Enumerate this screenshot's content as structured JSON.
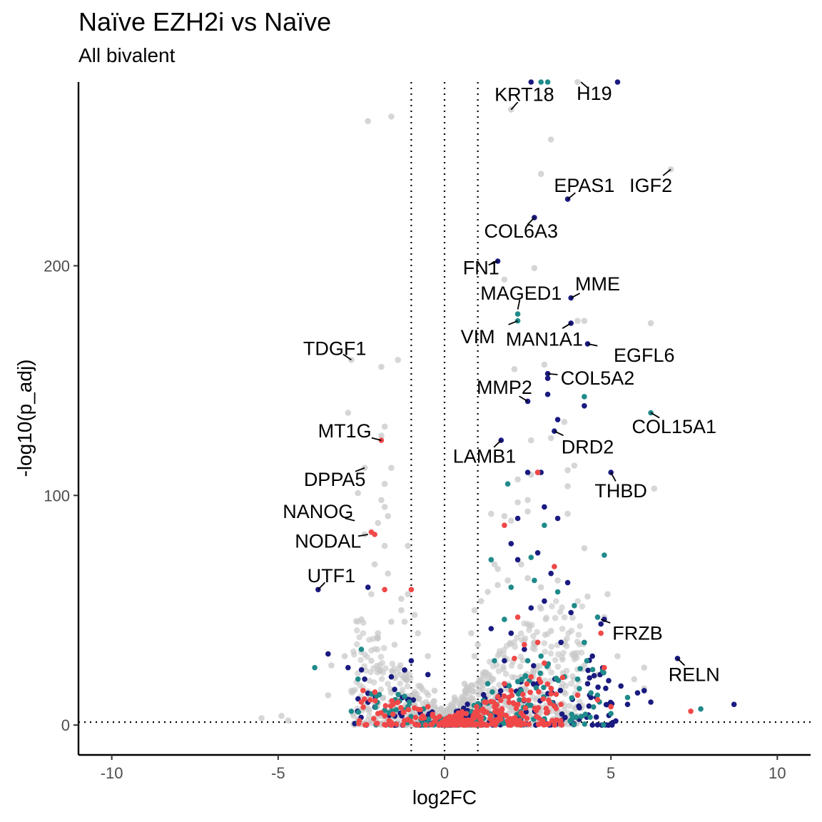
{
  "chart_data": {
    "type": "scatter",
    "title": "Naïve EZH2i vs Naïve",
    "subtitle": "All bivalent",
    "xlabel": "log2FC",
    "ylabel": "-log10(p_adj)",
    "xlim": [
      -11,
      11
    ],
    "ylim": [
      -13,
      280
    ],
    "x_ticks": [
      -10,
      -5,
      0,
      5,
      10
    ],
    "y_ticks": [
      0,
      100,
      200
    ],
    "x_tick_labels": [
      "-10",
      "-5",
      "0",
      "5",
      "10"
    ],
    "y_tick_labels": [
      "0",
      "100",
      "200"
    ],
    "grid": false,
    "legend": "none",
    "reference_lines": {
      "vertical": [
        -1,
        0,
        1
      ],
      "horizontal": [
        1.3
      ],
      "style": "dotted"
    },
    "colors": {
      "background_genes": "#c8c8c8",
      "navy": "#1a1a80",
      "teal": "#1f8a8a",
      "red": "#f04848"
    },
    "labeled_genes": [
      {
        "gene": "KRT18",
        "x": 2.0,
        "y": 268,
        "label_x": 2.4,
        "label_y": 274.5
      },
      {
        "gene": "H19",
        "x": 4.1,
        "y": 280,
        "label_x": 4.5,
        "label_y": 275
      },
      {
        "gene": "EPAS1",
        "x": 3.7,
        "y": 229,
        "label_x": 4.2,
        "label_y": 235
      },
      {
        "gene": "IGF2",
        "x": 6.8,
        "y": 242,
        "label_x": 6.2,
        "label_y": 235
      },
      {
        "gene": "COL6A3",
        "x": 2.7,
        "y": 221,
        "label_x": 2.3,
        "label_y": 215
      },
      {
        "gene": "FN1",
        "x": 1.6,
        "y": 202,
        "label_x": 1.1,
        "label_y": 199
      },
      {
        "gene": "MME",
        "x": 3.8,
        "y": 186,
        "label_x": 4.6,
        "label_y": 192
      },
      {
        "gene": "MAGED1",
        "x": 2.2,
        "y": 181,
        "label_x": 2.3,
        "label_y": 188
      },
      {
        "gene": "VIM",
        "x": 2.2,
        "y": 176,
        "label_x": 1.0,
        "label_y": 169
      },
      {
        "gene": "MAN1A1",
        "x": 3.8,
        "y": 175,
        "label_x": 3.0,
        "label_y": 168
      },
      {
        "gene": "EGFL6",
        "x": 4.3,
        "y": 166,
        "label_x": 6.0,
        "label_y": 161
      },
      {
        "gene": "TDGF1",
        "x": -2.8,
        "y": 159,
        "label_x": -3.3,
        "label_y": 164
      },
      {
        "gene": "COL5A2",
        "x": 3.1,
        "y": 153,
        "label_x": 4.6,
        "label_y": 151
      },
      {
        "gene": "MMP2",
        "x": 2.5,
        "y": 141,
        "label_x": 1.8,
        "label_y": 147
      },
      {
        "gene": "COL15A1",
        "x": 6.2,
        "y": 136,
        "label_x": 6.9,
        "label_y": 130
      },
      {
        "gene": "MT1G",
        "x": -1.9,
        "y": 124,
        "label_x": -3.0,
        "label_y": 128
      },
      {
        "gene": "DRD2",
        "x": 3.3,
        "y": 128,
        "label_x": 4.3,
        "label_y": 121
      },
      {
        "gene": "LAMB1",
        "x": 1.7,
        "y": 124,
        "label_x": 1.2,
        "label_y": 117
      },
      {
        "gene": "DPPA5",
        "x": -2.4,
        "y": 112,
        "label_x": -3.3,
        "label_y": 107
      },
      {
        "gene": "THBD",
        "x": 5.0,
        "y": 110,
        "label_x": 5.3,
        "label_y": 102
      },
      {
        "gene": "NANOG",
        "x": -2.7,
        "y": 89,
        "label_x": -3.8,
        "label_y": 93
      },
      {
        "gene": "NODAL",
        "x": -2.3,
        "y": 83,
        "label_x": -3.5,
        "label_y": 80
      },
      {
        "gene": "UTF1",
        "x": -3.8,
        "y": 59,
        "label_x": -3.4,
        "label_y": 65
      },
      {
        "gene": "FRZB",
        "x": 4.7,
        "y": 46,
        "label_x": 5.8,
        "label_y": 40
      },
      {
        "gene": "RELN",
        "x": 7.0,
        "y": 29,
        "label_x": 7.5,
        "label_y": 22
      }
    ],
    "highlighted_points": {
      "navy": [
        [
          2.6,
          280
        ],
        [
          5.2,
          280
        ],
        [
          3.7,
          229
        ],
        [
          2.7,
          221
        ],
        [
          1.6,
          202
        ],
        [
          3.8,
          186
        ],
        [
          3.8,
          175
        ],
        [
          4.3,
          166
        ],
        [
          -3.8,
          59
        ],
        [
          3.1,
          153
        ],
        [
          2.5,
          141
        ],
        [
          3.3,
          128
        ],
        [
          1.7,
          124
        ],
        [
          5.0,
          110
        ],
        [
          3.1,
          151
        ],
        [
          3.1,
          144
        ],
        [
          4.2,
          139
        ],
        [
          3.4,
          133
        ],
        [
          2.5,
          110
        ],
        [
          2.8,
          110
        ],
        [
          2.9,
          110
        ],
        [
          3.0,
          95
        ],
        [
          3.4,
          90
        ],
        [
          2.2,
          90
        ],
        [
          4.8,
          46
        ],
        [
          4.7,
          44
        ],
        [
          7.0,
          29
        ],
        [
          8.7,
          9
        ],
        [
          -3.5,
          31
        ],
        [
          -2.9,
          25
        ],
        [
          -2.3,
          60
        ],
        [
          -2.4,
          20
        ],
        [
          -1.6,
          21
        ],
        [
          -1.2,
          24
        ],
        [
          -1.0,
          28
        ],
        [
          -0.5,
          22
        ],
        [
          1.4,
          42
        ],
        [
          1.8,
          28
        ],
        [
          2.0,
          40
        ],
        [
          2.4,
          33
        ],
        [
          2.6,
          51
        ],
        [
          3.0,
          54
        ],
        [
          3.5,
          36
        ],
        [
          3.7,
          62
        ],
        [
          3.8,
          49
        ],
        [
          4.3,
          18
        ],
        [
          4.4,
          12
        ],
        [
          5.3,
          17
        ],
        [
          5.5,
          9
        ],
        [
          5.8,
          14
        ],
        [
          6.0,
          15
        ],
        [
          6.2,
          10
        ],
        [
          2.0,
          79
        ],
        [
          2.2,
          72
        ],
        [
          2.8,
          75
        ],
        [
          3.2,
          66
        ],
        [
          1.6,
          12
        ]
      ],
      "teal": [
        [
          2.9,
          280
        ],
        [
          3.1,
          280
        ],
        [
          2.2,
          179
        ],
        [
          2.2,
          176
        ],
        [
          4.2,
          143
        ],
        [
          6.2,
          136
        ],
        [
          4.6,
          47
        ],
        [
          1.9,
          105
        ],
        [
          3.0,
          87
        ],
        [
          4.8,
          74
        ],
        [
          -3.9,
          25
        ],
        [
          -2.5,
          33
        ],
        [
          -2.6,
          20
        ],
        [
          1.4,
          72
        ],
        [
          1.8,
          46
        ],
        [
          2.0,
          60
        ],
        [
          2.5,
          28
        ],
        [
          2.7,
          63
        ],
        [
          3.4,
          58
        ],
        [
          3.9,
          52
        ],
        [
          4.2,
          36
        ],
        [
          4.4,
          14
        ],
        [
          5.5,
          12
        ],
        [
          7.7,
          7
        ],
        [
          2.6,
          73
        ],
        [
          1.3,
          18
        ],
        [
          2.3,
          15
        ],
        [
          3.6,
          21
        ],
        [
          1.5,
          28
        ],
        [
          2.9,
          30
        ],
        [
          4.0,
          20
        ],
        [
          -1.1,
          8
        ],
        [
          -2.8,
          6
        ],
        [
          5.0,
          5
        ]
      ],
      "red": [
        [
          -1.9,
          124
        ],
        [
          -2.2,
          84
        ],
        [
          -2.1,
          83
        ],
        [
          2.8,
          110
        ],
        [
          4.7,
          40
        ],
        [
          1.8,
          87
        ],
        [
          3.3,
          69
        ],
        [
          -1.8,
          59
        ],
        [
          -1.0,
          59
        ],
        [
          4.8,
          25
        ],
        [
          7.4,
          6
        ],
        [
          -2.5,
          10
        ],
        [
          -1.4,
          10
        ],
        [
          -0.5,
          8
        ],
        [
          0.5,
          4
        ],
        [
          1.0,
          6
        ],
        [
          1.5,
          8
        ],
        [
          2.0,
          15
        ],
        [
          2.2,
          47
        ],
        [
          2.4,
          35
        ],
        [
          2.6,
          21
        ],
        [
          3.0,
          27
        ],
        [
          3.2,
          16
        ],
        [
          3.5,
          9
        ],
        [
          4.0,
          13
        ],
        [
          4.6,
          11
        ],
        [
          5.0,
          8
        ],
        [
          2.1,
          29
        ],
        [
          2.8,
          36
        ],
        [
          1.2,
          10
        ],
        [
          -2.0,
          5
        ],
        [
          -0.7,
          3
        ],
        [
          0.7,
          2
        ],
        [
          1.8,
          18
        ]
      ]
    },
    "background_points": [
      [
        -2.3,
        263
      ],
      [
        -1.6,
        265
      ],
      [
        3.2,
        255
      ],
      [
        2.9,
        240
      ],
      [
        6.8,
        242
      ],
      [
        2.0,
        268
      ],
      [
        4.0,
        280
      ],
      [
        2.7,
        199
      ],
      [
        1.8,
        194
      ],
      [
        4.0,
        176
      ],
      [
        4.2,
        176
      ],
      [
        6.2,
        175
      ],
      [
        -1.4,
        159
      ],
      [
        -1.9,
        156
      ],
      [
        -2.8,
        159
      ],
      [
        2.1,
        155
      ],
      [
        3.0,
        157
      ],
      [
        -2.9,
        136
      ],
      [
        -1.8,
        130
      ],
      [
        -1.9,
        126
      ],
      [
        -2.4,
        112
      ],
      [
        -1.6,
        112
      ],
      [
        -1.8,
        105
      ],
      [
        -2.6,
        101
      ],
      [
        -1.9,
        98
      ],
      [
        -1.8,
        95
      ],
      [
        -1.7,
        91
      ],
      [
        -2.0,
        88
      ],
      [
        -2.4,
        83
      ],
      [
        2.2,
        107
      ],
      [
        2.6,
        109
      ],
      [
        3.7,
        111
      ],
      [
        3.9,
        113
      ],
      [
        2.6,
        124
      ],
      [
        3.2,
        125
      ],
      [
        3.6,
        132
      ],
      [
        6.3,
        103
      ],
      [
        3.7,
        104
      ],
      [
        1.4,
        92
      ],
      [
        2.5,
        93
      ],
      [
        3.7,
        92
      ],
      [
        2.2,
        97
      ],
      [
        2.0,
        89
      ],
      [
        1.8,
        91
      ],
      [
        2.5,
        98
      ],
      [
        4.2,
        77
      ],
      [
        1.5,
        70
      ],
      [
        -1.8,
        78
      ],
      [
        -2.1,
        70
      ],
      [
        -1.1,
        78
      ],
      [
        -1.7,
        66
      ],
      [
        -2.2,
        57
      ],
      [
        -1.1,
        57
      ],
      [
        1.6,
        68
      ],
      [
        1.6,
        61
      ],
      [
        1.9,
        63
      ],
      [
        2.3,
        70
      ],
      [
        2.5,
        64
      ],
      [
        2.9,
        60
      ],
      [
        3.4,
        63
      ],
      [
        4.3,
        56
      ],
      [
        4.9,
        57
      ],
      [
        4.8,
        47
      ],
      [
        6.0,
        25
      ],
      [
        6.0,
        16
      ],
      [
        5.7,
        20
      ],
      [
        4.6,
        22
      ],
      [
        5.2,
        30
      ],
      [
        -5.5,
        3
      ],
      [
        -4.9,
        4
      ],
      [
        -4.7,
        2
      ],
      [
        -3.5,
        13
      ],
      [
        -3.4,
        26
      ],
      [
        -2.5,
        46
      ],
      [
        -2.0,
        40
      ],
      [
        -1.5,
        35
      ],
      [
        -1.2,
        45
      ],
      [
        -1.3,
        55
      ],
      [
        -0.9,
        48
      ],
      [
        -0.8,
        40
      ],
      [
        -0.5,
        30
      ],
      [
        -0.3,
        15
      ],
      [
        0.3,
        12
      ],
      [
        0.6,
        18
      ],
      [
        0.8,
        40
      ],
      [
        0.9,
        30
      ],
      [
        1.1,
        54
      ],
      [
        1.3,
        58
      ],
      [
        0.9,
        50
      ],
      [
        1.0,
        35
      ],
      [
        -3.0,
        30
      ],
      [
        -2.8,
        15
      ],
      [
        -2.2,
        28
      ],
      [
        -1.3,
        50
      ],
      [
        -1.6,
        45
      ],
      [
        -2.0,
        38
      ],
      [
        2.5,
        44
      ],
      [
        3.2,
        41
      ],
      [
        3.9,
        30
      ],
      [
        4.2,
        26
      ],
      [
        3.5,
        15
      ],
      [
        -1.0,
        12
      ],
      [
        1.1,
        20
      ]
    ]
  }
}
